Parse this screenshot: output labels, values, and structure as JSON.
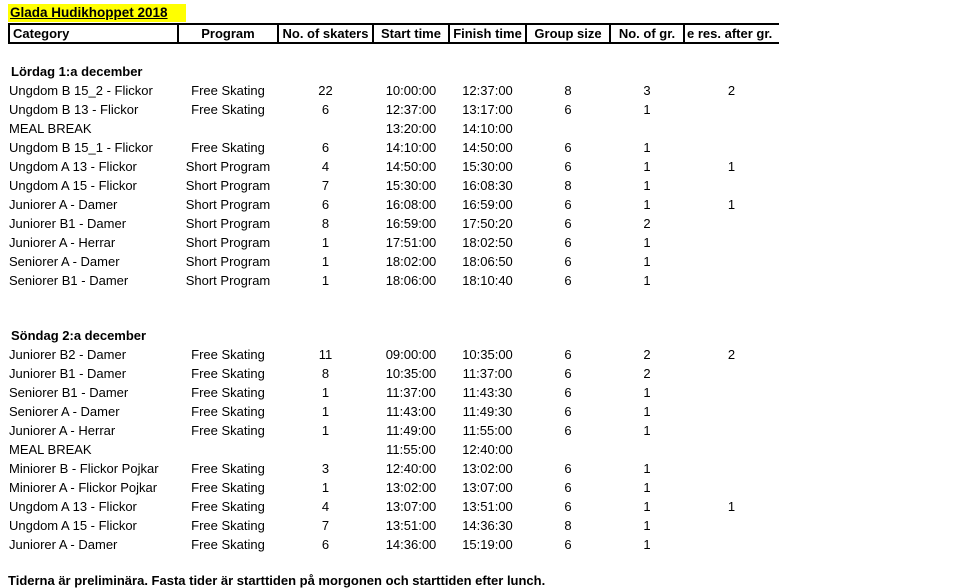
{
  "title": "Glada Hudikhoppet 2018",
  "columns": [
    "Category",
    "Program",
    "No. of skaters",
    "Start time",
    "Finish time",
    "Group size",
    "No. of gr.",
    "e res. after gr."
  ],
  "sections": [
    {
      "heading": "Lördag 1:a december",
      "rows": [
        {
          "category": "Ungdom B 15_2 - Flickor",
          "program": "Free Skating",
          "skaters": "22",
          "start": "10:00:00",
          "finish": "12:37:00",
          "group_size": "8",
          "groups": "3",
          "res_after": "2"
        },
        {
          "category": "Ungdom B 13 - Flickor",
          "program": "Free Skating",
          "skaters": "6",
          "start": "12:37:00",
          "finish": "13:17:00",
          "group_size": "6",
          "groups": "1",
          "res_after": ""
        },
        {
          "category": "MEAL BREAK",
          "program": "",
          "skaters": "",
          "start": "13:20:00",
          "finish": "14:10:00",
          "group_size": "",
          "groups": "",
          "res_after": ""
        },
        {
          "category": "Ungdom B 15_1 - Flickor",
          "program": "Free Skating",
          "skaters": "6",
          "start": "14:10:00",
          "finish": "14:50:00",
          "group_size": "6",
          "groups": "1",
          "res_after": ""
        },
        {
          "category": "Ungdom A 13 - Flickor",
          "program": "Short Program",
          "skaters": "4",
          "start": "14:50:00",
          "finish": "15:30:00",
          "group_size": "6",
          "groups": "1",
          "res_after": "1"
        },
        {
          "category": "Ungdom A 15 - Flickor",
          "program": "Short Program",
          "skaters": "7",
          "start": "15:30:00",
          "finish": "16:08:30",
          "group_size": "8",
          "groups": "1",
          "res_after": ""
        },
        {
          "category": "Juniorer A - Damer",
          "program": "Short Program",
          "skaters": "6",
          "start": "16:08:00",
          "finish": "16:59:00",
          "group_size": "6",
          "groups": "1",
          "res_after": "1"
        },
        {
          "category": "Juniorer B1 - Damer",
          "program": "Short Program",
          "skaters": "8",
          "start": "16:59:00",
          "finish": "17:50:20",
          "group_size": "6",
          "groups": "2",
          "res_after": ""
        },
        {
          "category": "Juniorer A - Herrar",
          "program": "Short Program",
          "skaters": "1",
          "start": "17:51:00",
          "finish": "18:02:50",
          "group_size": "6",
          "groups": "1",
          "res_after": ""
        },
        {
          "category": "Seniorer A - Damer",
          "program": "Short Program",
          "skaters": "1",
          "start": "18:02:00",
          "finish": "18:06:50",
          "group_size": "6",
          "groups": "1",
          "res_after": ""
        },
        {
          "category": "Seniorer B1 - Damer",
          "program": "Short Program",
          "skaters": "1",
          "start": "18:06:00",
          "finish": "18:10:40",
          "group_size": "6",
          "groups": "1",
          "res_after": ""
        }
      ]
    },
    {
      "heading": "Söndag 2:a december",
      "rows": [
        {
          "category": "Juniorer B2 - Damer",
          "program": "Free Skating",
          "skaters": "11",
          "start": "09:00:00",
          "finish": "10:35:00",
          "group_size": "6",
          "groups": "2",
          "res_after": "2"
        },
        {
          "category": "Juniorer B1 - Damer",
          "program": "Free Skating",
          "skaters": "8",
          "start": "10:35:00",
          "finish": "11:37:00",
          "group_size": "6",
          "groups": "2",
          "res_after": ""
        },
        {
          "category": "Seniorer B1 - Damer",
          "program": "Free Skating",
          "skaters": "1",
          "start": "11:37:00",
          "finish": "11:43:30",
          "group_size": "6",
          "groups": "1",
          "res_after": ""
        },
        {
          "category": "Seniorer A - Damer",
          "program": "Free Skating",
          "skaters": "1",
          "start": "11:43:00",
          "finish": "11:49:30",
          "group_size": "6",
          "groups": "1",
          "res_after": ""
        },
        {
          "category": "Juniorer A - Herrar",
          "program": "Free Skating",
          "skaters": "1",
          "start": "11:49:00",
          "finish": "11:55:00",
          "group_size": "6",
          "groups": "1",
          "res_after": ""
        },
        {
          "category": "MEAL BREAK",
          "program": "",
          "skaters": "",
          "start": "11:55:00",
          "finish": "12:40:00",
          "group_size": "",
          "groups": "",
          "res_after": ""
        },
        {
          "category": "Miniorer B - Flickor Pojkar",
          "program": "Free Skating",
          "skaters": "3",
          "start": "12:40:00",
          "finish": "13:02:00",
          "group_size": "6",
          "groups": "1",
          "res_after": ""
        },
        {
          "category": "Miniorer A - Flickor Pojkar",
          "program": "Free Skating",
          "skaters": "1",
          "start": "13:02:00",
          "finish": "13:07:00",
          "group_size": "6",
          "groups": "1",
          "res_after": ""
        },
        {
          "category": "Ungdom A 13 - Flickor",
          "program": "Free Skating",
          "skaters": "4",
          "start": "13:07:00",
          "finish": "13:51:00",
          "group_size": "6",
          "groups": "1",
          "res_after": "1"
        },
        {
          "category": "Ungdom A 15 - Flickor",
          "program": "Free Skating",
          "skaters": "7",
          "start": "13:51:00",
          "finish": "14:36:30",
          "group_size": "8",
          "groups": "1",
          "res_after": ""
        },
        {
          "category": "Juniorer A - Damer",
          "program": "Free Skating",
          "skaters": "6",
          "start": "14:36:00",
          "finish": "15:19:00",
          "group_size": "6",
          "groups": "1",
          "res_after": ""
        }
      ]
    }
  ],
  "footer": "Tiderna är preliminära. Fasta tider är starttiden på morgonen och starttiden efter lunch.",
  "colors": {
    "highlight": "#FFFF00",
    "text": "#000000",
    "background": "#FFFFFF"
  }
}
